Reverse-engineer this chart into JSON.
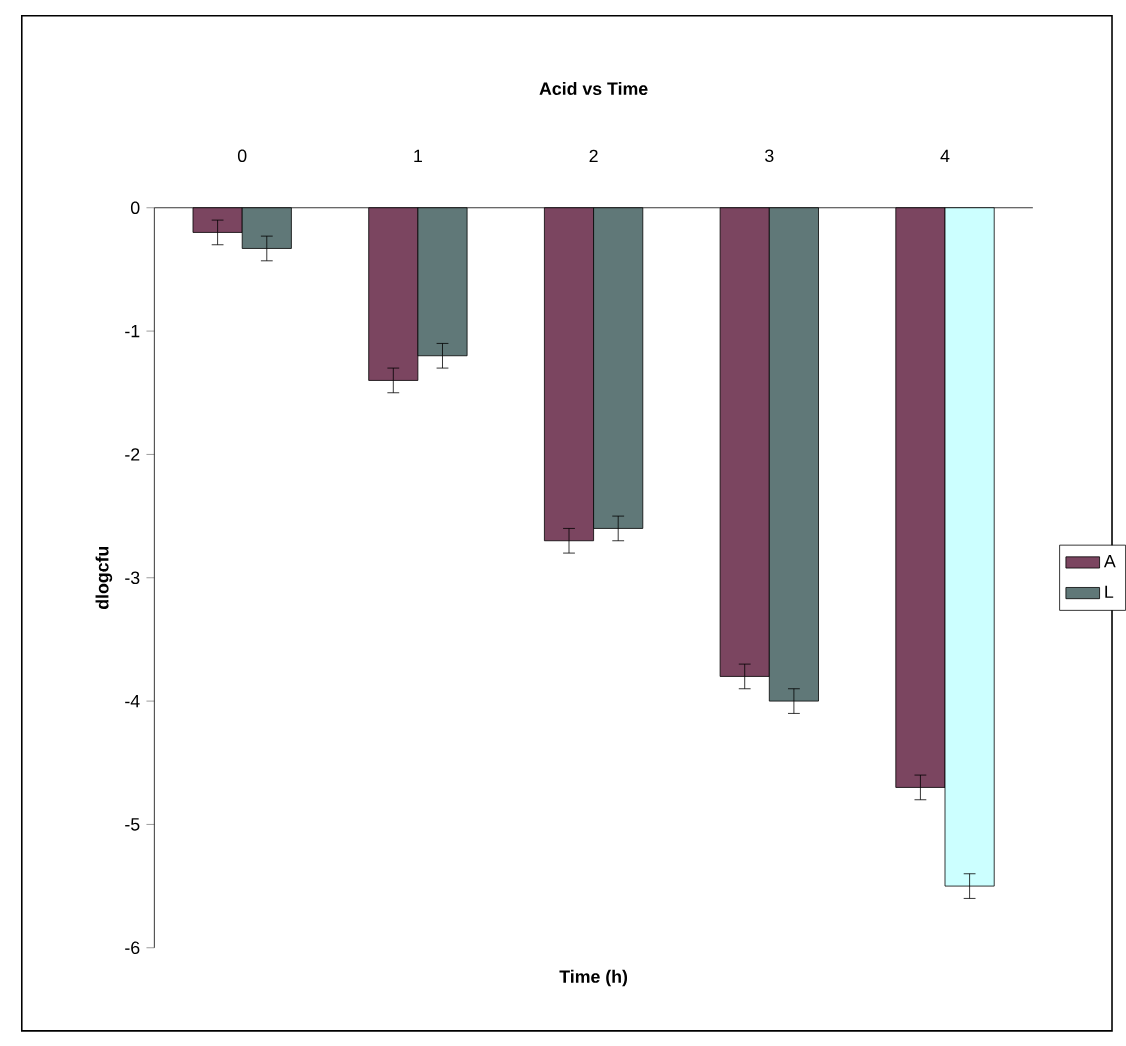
{
  "chart_data": {
    "type": "bar",
    "title": "Acid vs Time",
    "xlabel": "Time (h)",
    "ylabel": "dlogcfu",
    "categories": [
      "0",
      "1",
      "2",
      "3",
      "4"
    ],
    "series": [
      {
        "name": "A",
        "color": "#7b4560",
        "values": [
          -0.2,
          -1.4,
          -2.7,
          -3.8,
          -4.7
        ],
        "errors": [
          0.1,
          0.1,
          0.1,
          0.1,
          0.1
        ]
      },
      {
        "name": "L",
        "color": "#607878",
        "colors": [
          "#607878",
          "#607878",
          "#607878",
          "#607878",
          "#ccffff"
        ],
        "values": [
          -0.33,
          -1.2,
          -2.6,
          -4.0,
          -5.5
        ],
        "errors": [
          0.1,
          0.1,
          0.1,
          0.1,
          0.1
        ]
      }
    ],
    "ylim": [
      -6,
      0
    ],
    "yticks": [
      -6,
      -5,
      -4,
      -3,
      -2,
      -1,
      0
    ],
    "grid": false,
    "legend": "right"
  }
}
